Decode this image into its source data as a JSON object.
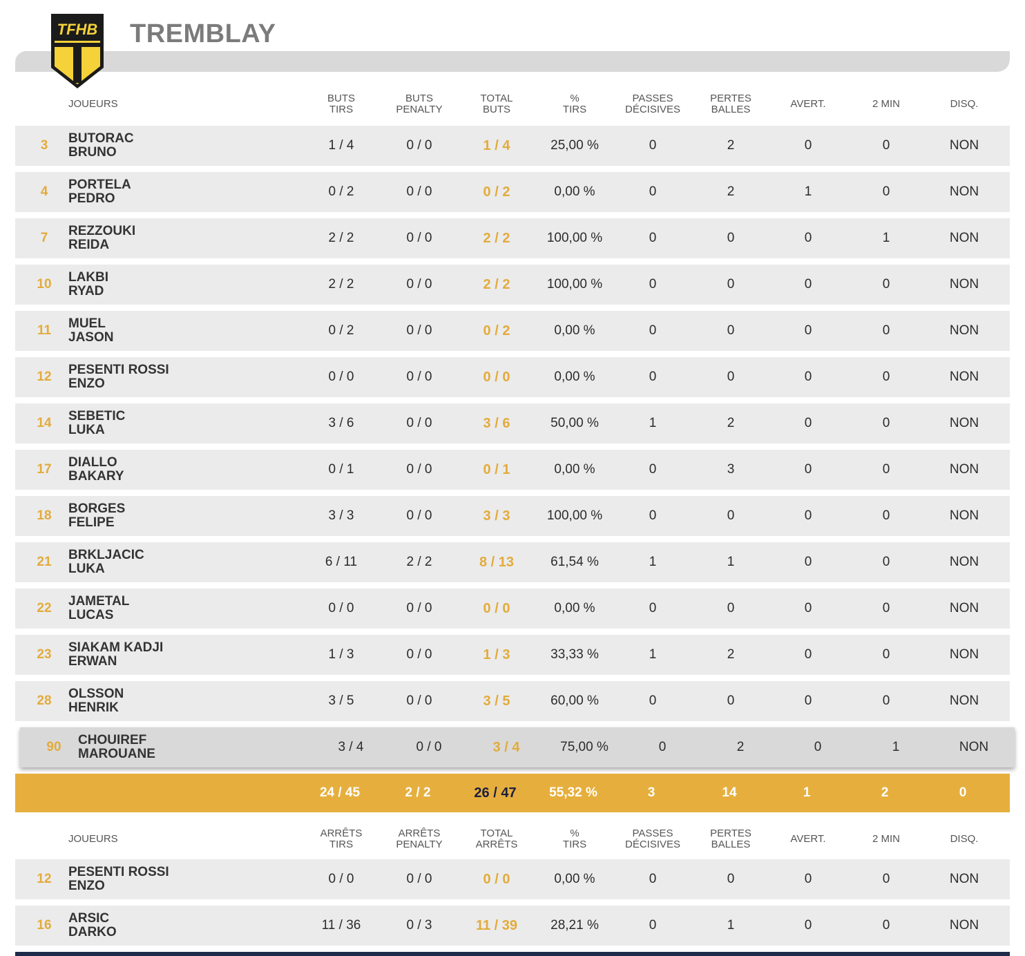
{
  "team": {
    "name": "TREMBLAY",
    "logo_text": "TFHB",
    "colors": {
      "accent": "#e6af3d",
      "logo_dark": "#1b1b1b",
      "logo_gold": "#f5d23a"
    }
  },
  "field_players": {
    "headers": [
      "JOUEURS",
      "BUTS\nTIRS",
      "BUTS\nPENALTY",
      "TOTAL\nBUTS",
      "%\nTIRS",
      "PASSES\nDÉCISIVES",
      "PERTES\nBALLES",
      "AVERT.",
      "2 MIN",
      "DISQ."
    ],
    "rows": [
      {
        "num": "3",
        "last": "BUTORAC",
        "first": "BRUNO",
        "buts_tirs": "1 / 4",
        "buts_penalty": "0 / 0",
        "total": "1 / 4",
        "pct": "25,00 %",
        "passes": "0",
        "pertes": "2",
        "avert": "0",
        "two_min": "0",
        "disq": "NON"
      },
      {
        "num": "4",
        "last": "PORTELA",
        "first": "PEDRO",
        "buts_tirs": "0 / 2",
        "buts_penalty": "0 / 0",
        "total": "0 / 2",
        "pct": "0,00 %",
        "passes": "0",
        "pertes": "2",
        "avert": "1",
        "two_min": "0",
        "disq": "NON"
      },
      {
        "num": "7",
        "last": "REZZOUKI",
        "first": "REIDA",
        "buts_tirs": "2 / 2",
        "buts_penalty": "0 / 0",
        "total": "2 / 2",
        "pct": "100,00 %",
        "passes": "0",
        "pertes": "0",
        "avert": "0",
        "two_min": "1",
        "disq": "NON"
      },
      {
        "num": "10",
        "last": "LAKBI",
        "first": "RYAD",
        "buts_tirs": "2 / 2",
        "buts_penalty": "0 / 0",
        "total": "2 / 2",
        "pct": "100,00 %",
        "passes": "0",
        "pertes": "0",
        "avert": "0",
        "two_min": "0",
        "disq": "NON"
      },
      {
        "num": "11",
        "last": "MUEL",
        "first": "JASON",
        "buts_tirs": "0 / 2",
        "buts_penalty": "0 / 0",
        "total": "0 / 2",
        "pct": "0,00 %",
        "passes": "0",
        "pertes": "0",
        "avert": "0",
        "two_min": "0",
        "disq": "NON"
      },
      {
        "num": "12",
        "last": "PESENTI ROSSI",
        "first": "ENZO",
        "buts_tirs": "0 / 0",
        "buts_penalty": "0 / 0",
        "total": "0 / 0",
        "pct": "0,00 %",
        "passes": "0",
        "pertes": "0",
        "avert": "0",
        "two_min": "0",
        "disq": "NON"
      },
      {
        "num": "14",
        "last": "SEBETIC",
        "first": "LUKA",
        "buts_tirs": "3 / 6",
        "buts_penalty": "0 / 0",
        "total": "3 / 6",
        "pct": "50,00 %",
        "passes": "1",
        "pertes": "2",
        "avert": "0",
        "two_min": "0",
        "disq": "NON"
      },
      {
        "num": "17",
        "last": "DIALLO",
        "first": "BAKARY",
        "buts_tirs": "0 / 1",
        "buts_penalty": "0 / 0",
        "total": "0 / 1",
        "pct": "0,00 %",
        "passes": "0",
        "pertes": "3",
        "avert": "0",
        "two_min": "0",
        "disq": "NON"
      },
      {
        "num": "18",
        "last": "BORGES",
        "first": "FELIPE",
        "buts_tirs": "3 / 3",
        "buts_penalty": "0 / 0",
        "total": "3 / 3",
        "pct": "100,00 %",
        "passes": "0",
        "pertes": "0",
        "avert": "0",
        "two_min": "0",
        "disq": "NON"
      },
      {
        "num": "21",
        "last": "BRKLJACIC",
        "first": "LUKA",
        "buts_tirs": "6 / 11",
        "buts_penalty": "2 / 2",
        "total": "8 / 13",
        "pct": "61,54 %",
        "passes": "1",
        "pertes": "1",
        "avert": "0",
        "two_min": "0",
        "disq": "NON"
      },
      {
        "num": "22",
        "last": "JAMETAL",
        "first": "LUCAS",
        "buts_tirs": "0 / 0",
        "buts_penalty": "0 / 0",
        "total": "0 / 0",
        "pct": "0,00 %",
        "passes": "0",
        "pertes": "0",
        "avert": "0",
        "two_min": "0",
        "disq": "NON"
      },
      {
        "num": "23",
        "last": "SIAKAM KADJI",
        "first": "ERWAN",
        "buts_tirs": "1 / 3",
        "buts_penalty": "0 / 0",
        "total": "1 / 3",
        "pct": "33,33 %",
        "passes": "1",
        "pertes": "2",
        "avert": "0",
        "two_min": "0",
        "disq": "NON"
      },
      {
        "num": "28",
        "last": "OLSSON",
        "first": "HENRIK",
        "buts_tirs": "3 / 5",
        "buts_penalty": "0 / 0",
        "total": "3 / 5",
        "pct": "60,00 %",
        "passes": "0",
        "pertes": "0",
        "avert": "0",
        "two_min": "0",
        "disq": "NON"
      },
      {
        "num": "90",
        "last": "CHOUIREF",
        "first": "MAROUANE",
        "buts_tirs": "3 / 4",
        "buts_penalty": "0 / 0",
        "total": "3 / 4",
        "pct": "75,00 %",
        "passes": "0",
        "pertes": "2",
        "avert": "0",
        "two_min": "1",
        "disq": "NON",
        "highlighted": true
      }
    ],
    "totals": {
      "buts_tirs": "24 / 45",
      "buts_penalty": "2 / 2",
      "total": "26 / 47",
      "pct": "55,32 %",
      "passes": "3",
      "pertes": "14",
      "avert": "1",
      "two_min": "2",
      "disq": "0"
    }
  },
  "goalkeepers": {
    "headers": [
      "JOUEURS",
      "ARRÊTS\nTIRS",
      "ARRÊTS\nPENALTY",
      "TOTAL\nARRÊTS",
      "%\nTIRS",
      "PASSES\nDÉCISIVES",
      "PERTES\nBALLES",
      "AVERT.",
      "2 MIN",
      "DISQ."
    ],
    "rows": [
      {
        "num": "12",
        "last": "PESENTI ROSSI",
        "first": "ENZO",
        "buts_tirs": "0 / 0",
        "buts_penalty": "0 / 0",
        "total": "0 / 0",
        "pct": "0,00 %",
        "passes": "0",
        "pertes": "0",
        "avert": "0",
        "two_min": "0",
        "disq": "NON"
      },
      {
        "num": "16",
        "last": "ARSIC",
        "first": "DARKO",
        "buts_tirs": "11 / 36",
        "buts_penalty": "0 / 3",
        "total": "11 / 39",
        "pct": "28,21 %",
        "passes": "0",
        "pertes": "1",
        "avert": "0",
        "two_min": "0",
        "disq": "NON"
      }
    ]
  }
}
